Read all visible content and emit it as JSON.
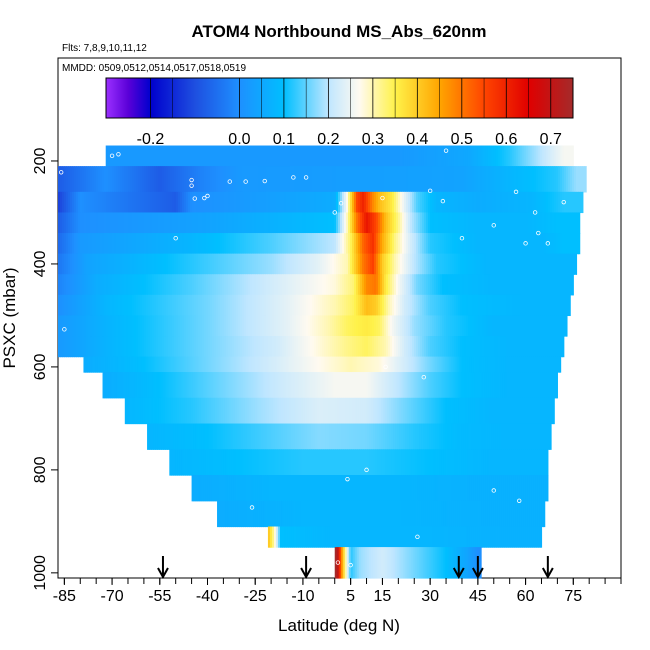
{
  "chart_data": {
    "type": "heatmap",
    "title": "ATOM4 Northbound MS_Abs_620nm",
    "flights_label": "Flts: 7,8,9,10,11,12",
    "mmdd_label": "MMDD: 0509,0512,0514,0517,0518,0519",
    "xlabel": "Latitude (deg N)",
    "ylabel": "PSXC (mbar)",
    "xlim": [
      -87,
      90
    ],
    "ylim": [
      1010,
      0
    ],
    "x_ticks": [
      -85,
      -70,
      -55,
      -40,
      -25,
      -10,
      5,
      15,
      30,
      45,
      60,
      75
    ],
    "x_tick_labels": [
      "-85",
      "-70",
      "-55",
      "-40",
      "-25",
      "-10",
      "5",
      "15",
      "30",
      "45",
      "60",
      "75"
    ],
    "y_ticks": [
      200,
      400,
      600,
      800,
      1000
    ],
    "y_tick_labels": [
      "200",
      "400",
      "600",
      "800",
      "1000"
    ],
    "colorbar": {
      "range": [
        -0.3,
        0.75
      ],
      "ticks": [
        -0.2,
        0.0,
        0.1,
        0.2,
        0.3,
        0.4,
        0.5,
        0.6,
        0.7
      ],
      "tick_labels": [
        "-0.2",
        "0.0",
        "0.1",
        "0.2",
        "0.3",
        "0.4",
        "0.5",
        "0.6",
        "0.7"
      ],
      "stops": [
        {
          "v": -0.3,
          "color": "#9b30ff"
        },
        {
          "v": -0.25,
          "color": "#5a00d8"
        },
        {
          "v": -0.2,
          "color": "#0000cd"
        },
        {
          "v": -0.1,
          "color": "#1e4fe0"
        },
        {
          "v": 0.0,
          "color": "#1e90ff"
        },
        {
          "v": 0.1,
          "color": "#00bfff"
        },
        {
          "v": 0.2,
          "color": "#bfe6ff"
        },
        {
          "v": 0.27,
          "color": "#fffaf0"
        },
        {
          "v": 0.35,
          "color": "#fff24a"
        },
        {
          "v": 0.45,
          "color": "#ffa500"
        },
        {
          "v": 0.55,
          "color": "#ff4500"
        },
        {
          "v": 0.65,
          "color": "#e00000"
        },
        {
          "v": 0.75,
          "color": "#a52a2a"
        }
      ]
    },
    "flight_marker_latitudes": [
      -54,
      -9,
      39,
      45,
      67
    ],
    "curtain_rows": [
      {
        "p_top": 170,
        "p_bot": 210,
        "lat_start": -72,
        "lat_end": 75,
        "cells": [
          [
            -72,
            0.02
          ],
          [
            20,
            0.02
          ],
          [
            42,
            0.05
          ],
          [
            55,
            0.12
          ],
          [
            65,
            0.2
          ],
          [
            72,
            0.26
          ]
        ]
      },
      {
        "p_top": 210,
        "p_bot": 260,
        "lat_start": -87,
        "lat_end": 79,
        "cells": [
          [
            -87,
            -0.08
          ],
          [
            -72,
            0.0
          ],
          [
            -55,
            -0.08
          ],
          [
            -42,
            -0.02
          ],
          [
            -30,
            0.02
          ],
          [
            40,
            0.04
          ],
          [
            55,
            0.08
          ],
          [
            70,
            0.12
          ],
          [
            76,
            0.18
          ]
        ]
      },
      {
        "p_top": 260,
        "p_bot": 300,
        "lat_start": -87,
        "lat_end": 78,
        "cells": [
          [
            -87,
            -0.12
          ],
          [
            -80,
            0.0
          ],
          [
            -50,
            -0.08
          ],
          [
            -45,
            0.0
          ],
          [
            0,
            0.06
          ],
          [
            4,
            0.28
          ],
          [
            7,
            0.55
          ],
          [
            9,
            0.6
          ],
          [
            12,
            0.48
          ],
          [
            14,
            0.42
          ],
          [
            18,
            0.36
          ],
          [
            22,
            0.24
          ],
          [
            26,
            0.14
          ],
          [
            32,
            0.08
          ],
          [
            45,
            0.06
          ],
          [
            62,
            0.08
          ],
          [
            72,
            0.12
          ]
        ]
      },
      {
        "p_top": 300,
        "p_bot": 340,
        "lat_start": -87,
        "lat_end": 77,
        "cells": [
          [
            -87,
            -0.08
          ],
          [
            -80,
            0.0
          ],
          [
            -40,
            0.04
          ],
          [
            0,
            0.1
          ],
          [
            4,
            0.3
          ],
          [
            7,
            0.5
          ],
          [
            10,
            0.62
          ],
          [
            13,
            0.55
          ],
          [
            16,
            0.42
          ],
          [
            20,
            0.32
          ],
          [
            24,
            0.2
          ],
          [
            30,
            0.1
          ],
          [
            45,
            0.08
          ],
          [
            60,
            0.08
          ],
          [
            70,
            0.1
          ]
        ]
      },
      {
        "p_top": 340,
        "p_bot": 380,
        "lat_start": -87,
        "lat_end": 77,
        "cells": [
          [
            -87,
            -0.06
          ],
          [
            -80,
            0.02
          ],
          [
            -45,
            0.08
          ],
          [
            -20,
            0.14
          ],
          [
            0,
            0.2
          ],
          [
            5,
            0.34
          ],
          [
            9,
            0.52
          ],
          [
            12,
            0.58
          ],
          [
            15,
            0.44
          ],
          [
            19,
            0.32
          ],
          [
            24,
            0.22
          ],
          [
            30,
            0.12
          ],
          [
            45,
            0.08
          ],
          [
            65,
            0.08
          ],
          [
            72,
            0.1
          ]
        ]
      },
      {
        "p_top": 380,
        "p_bot": 420,
        "lat_start": -87,
        "lat_end": 76,
        "cells": [
          [
            -87,
            -0.04
          ],
          [
            -78,
            0.04
          ],
          [
            -45,
            0.12
          ],
          [
            -20,
            0.18
          ],
          [
            -5,
            0.24
          ],
          [
            4,
            0.3
          ],
          [
            9,
            0.5
          ],
          [
            12,
            0.56
          ],
          [
            15,
            0.4
          ],
          [
            19,
            0.3
          ],
          [
            25,
            0.2
          ],
          [
            32,
            0.12
          ],
          [
            48,
            0.08
          ],
          [
            70,
            0.08
          ]
        ]
      },
      {
        "p_top": 420,
        "p_bot": 460,
        "lat_start": -87,
        "lat_end": 75,
        "cells": [
          [
            -87,
            -0.02
          ],
          [
            -75,
            0.06
          ],
          [
            -45,
            0.14
          ],
          [
            -20,
            0.22
          ],
          [
            0,
            0.28
          ],
          [
            6,
            0.33
          ],
          [
            10,
            0.48
          ],
          [
            13,
            0.5
          ],
          [
            16,
            0.36
          ],
          [
            20,
            0.26
          ],
          [
            26,
            0.16
          ],
          [
            34,
            0.1
          ],
          [
            50,
            0.08
          ],
          [
            70,
            0.08
          ]
        ]
      },
      {
        "p_top": 460,
        "p_bot": 500,
        "lat_start": -87,
        "lat_end": 74,
        "cells": [
          [
            -87,
            0.0
          ],
          [
            -72,
            0.08
          ],
          [
            -40,
            0.16
          ],
          [
            -15,
            0.24
          ],
          [
            0,
            0.3
          ],
          [
            6,
            0.34
          ],
          [
            10,
            0.42
          ],
          [
            13,
            0.4
          ],
          [
            17,
            0.3
          ],
          [
            22,
            0.22
          ],
          [
            30,
            0.14
          ],
          [
            40,
            0.1
          ],
          [
            60,
            0.08
          ]
        ]
      },
      {
        "p_top": 500,
        "p_bot": 540,
        "lat_start": -87,
        "lat_end": 73,
        "cells": [
          [
            -87,
            0.02
          ],
          [
            -70,
            0.08
          ],
          [
            -40,
            0.16
          ],
          [
            -15,
            0.24
          ],
          [
            -2,
            0.3
          ],
          [
            4,
            0.34
          ],
          [
            10,
            0.36
          ],
          [
            14,
            0.34
          ],
          [
            18,
            0.26
          ],
          [
            25,
            0.18
          ],
          [
            35,
            0.12
          ],
          [
            50,
            0.08
          ]
        ]
      },
      {
        "p_top": 540,
        "p_bot": 580,
        "lat_start": -87,
        "lat_end": 72,
        "cells": [
          [
            -87,
            0.02
          ],
          [
            -70,
            0.08
          ],
          [
            -40,
            0.16
          ],
          [
            -18,
            0.22
          ],
          [
            -5,
            0.28
          ],
          [
            4,
            0.32
          ],
          [
            10,
            0.34
          ],
          [
            16,
            0.3
          ],
          [
            22,
            0.22
          ],
          [
            30,
            0.14
          ],
          [
            40,
            0.1
          ],
          [
            55,
            0.08
          ]
        ]
      },
      {
        "p_top": 580,
        "p_bot": 610,
        "lat_start": -79,
        "lat_end": 71,
        "cells": [
          [
            -79,
            0.06
          ],
          [
            -60,
            0.1
          ],
          [
            -40,
            0.16
          ],
          [
            -20,
            0.22
          ],
          [
            -5,
            0.27
          ],
          [
            5,
            0.3
          ],
          [
            14,
            0.28
          ],
          [
            22,
            0.22
          ],
          [
            30,
            0.16
          ],
          [
            40,
            0.1
          ],
          [
            55,
            0.08
          ]
        ]
      },
      {
        "p_top": 610,
        "p_bot": 660,
        "lat_start": -73,
        "lat_end": 70,
        "cells": [
          [
            -73,
            0.06
          ],
          [
            -55,
            0.1
          ],
          [
            -35,
            0.16
          ],
          [
            -15,
            0.22
          ],
          [
            0,
            0.26
          ],
          [
            10,
            0.26
          ],
          [
            20,
            0.2
          ],
          [
            30,
            0.14
          ],
          [
            40,
            0.1
          ],
          [
            55,
            0.08
          ]
        ]
      },
      {
        "p_top": 660,
        "p_bot": 710,
        "lat_start": -66,
        "lat_end": 69,
        "cells": [
          [
            -66,
            0.08
          ],
          [
            -45,
            0.12
          ],
          [
            -25,
            0.18
          ],
          [
            -5,
            0.23
          ],
          [
            10,
            0.22
          ],
          [
            22,
            0.16
          ],
          [
            35,
            0.1
          ],
          [
            50,
            0.08
          ]
        ]
      },
      {
        "p_top": 710,
        "p_bot": 760,
        "lat_start": -59,
        "lat_end": 68,
        "cells": [
          [
            -59,
            0.08
          ],
          [
            -40,
            0.1
          ],
          [
            -20,
            0.14
          ],
          [
            -5,
            0.17
          ],
          [
            10,
            0.16
          ],
          [
            25,
            0.12
          ],
          [
            40,
            0.09
          ],
          [
            55,
            0.08
          ]
        ]
      },
      {
        "p_top": 760,
        "p_bot": 810,
        "lat_start": -52,
        "lat_end": 67,
        "cells": [
          [
            -52,
            0.08
          ],
          [
            -30,
            0.1
          ],
          [
            -10,
            0.12
          ],
          [
            10,
            0.12
          ],
          [
            30,
            0.1
          ],
          [
            50,
            0.08
          ]
        ]
      },
      {
        "p_top": 810,
        "p_bot": 860,
        "lat_start": -45,
        "lat_end": 67,
        "cells": [
          [
            -45,
            0.06
          ],
          [
            -20,
            0.08
          ],
          [
            0,
            0.08
          ],
          [
            20,
            0.08
          ],
          [
            45,
            0.07
          ],
          [
            60,
            0.07
          ]
        ]
      },
      {
        "p_top": 860,
        "p_bot": 910,
        "lat_start": -37,
        "lat_end": 66,
        "cells": [
          [
            -37,
            0.06
          ],
          [
            -10,
            0.08
          ],
          [
            20,
            0.08
          ],
          [
            50,
            0.07
          ]
        ]
      },
      {
        "p_top": 910,
        "p_bot": 950,
        "lat_start": -21,
        "lat_end": 65,
        "cells": [
          [
            -21,
            0.42
          ],
          [
            -19,
            0.3
          ],
          [
            -17,
            0.1
          ],
          [
            0,
            0.08
          ],
          [
            30,
            0.08
          ],
          [
            55,
            0.07
          ]
        ]
      },
      {
        "p_top": 950,
        "p_bot": 1010,
        "lat_start": 0,
        "lat_end": 46,
        "cells": [
          [
            0,
            0.8
          ],
          [
            1,
            0.7
          ],
          [
            2,
            0.5
          ],
          [
            3,
            0.36
          ],
          [
            5,
            0.12
          ],
          [
            8,
            0.18
          ],
          [
            15,
            0.22
          ],
          [
            25,
            0.16
          ],
          [
            35,
            0.1
          ],
          [
            42,
            0.04
          ],
          [
            45,
            0.0
          ]
        ]
      }
    ],
    "sample_points": [
      [
        -70,
        190
      ],
      [
        -68,
        187
      ],
      [
        -86,
        222
      ],
      [
        -45,
        237
      ],
      [
        -40,
        268
      ],
      [
        -41,
        272
      ],
      [
        -33,
        240
      ],
      [
        -28,
        240
      ],
      [
        -22,
        239
      ],
      [
        -13,
        232
      ],
      [
        2,
        282
      ],
      [
        -9,
        232
      ],
      [
        -45,
        248
      ],
      [
        -50,
        350
      ],
      [
        0,
        300
      ],
      [
        15,
        272
      ],
      [
        30,
        258
      ],
      [
        34,
        278
      ],
      [
        40,
        350
      ],
      [
        57,
        260
      ],
      [
        50,
        325
      ],
      [
        60,
        360
      ],
      [
        67,
        360
      ],
      [
        64,
        340
      ],
      [
        72,
        280
      ],
      [
        63,
        300
      ],
      [
        -44,
        273
      ],
      [
        35,
        180
      ],
      [
        -85,
        527
      ],
      [
        28,
        620
      ],
      [
        16,
        600
      ],
      [
        4,
        818
      ],
      [
        10,
        800
      ],
      [
        50,
        840
      ],
      [
        58,
        860
      ],
      [
        -26,
        873
      ],
      [
        26,
        930
      ],
      [
        1,
        980
      ],
      [
        5,
        985
      ]
    ]
  }
}
